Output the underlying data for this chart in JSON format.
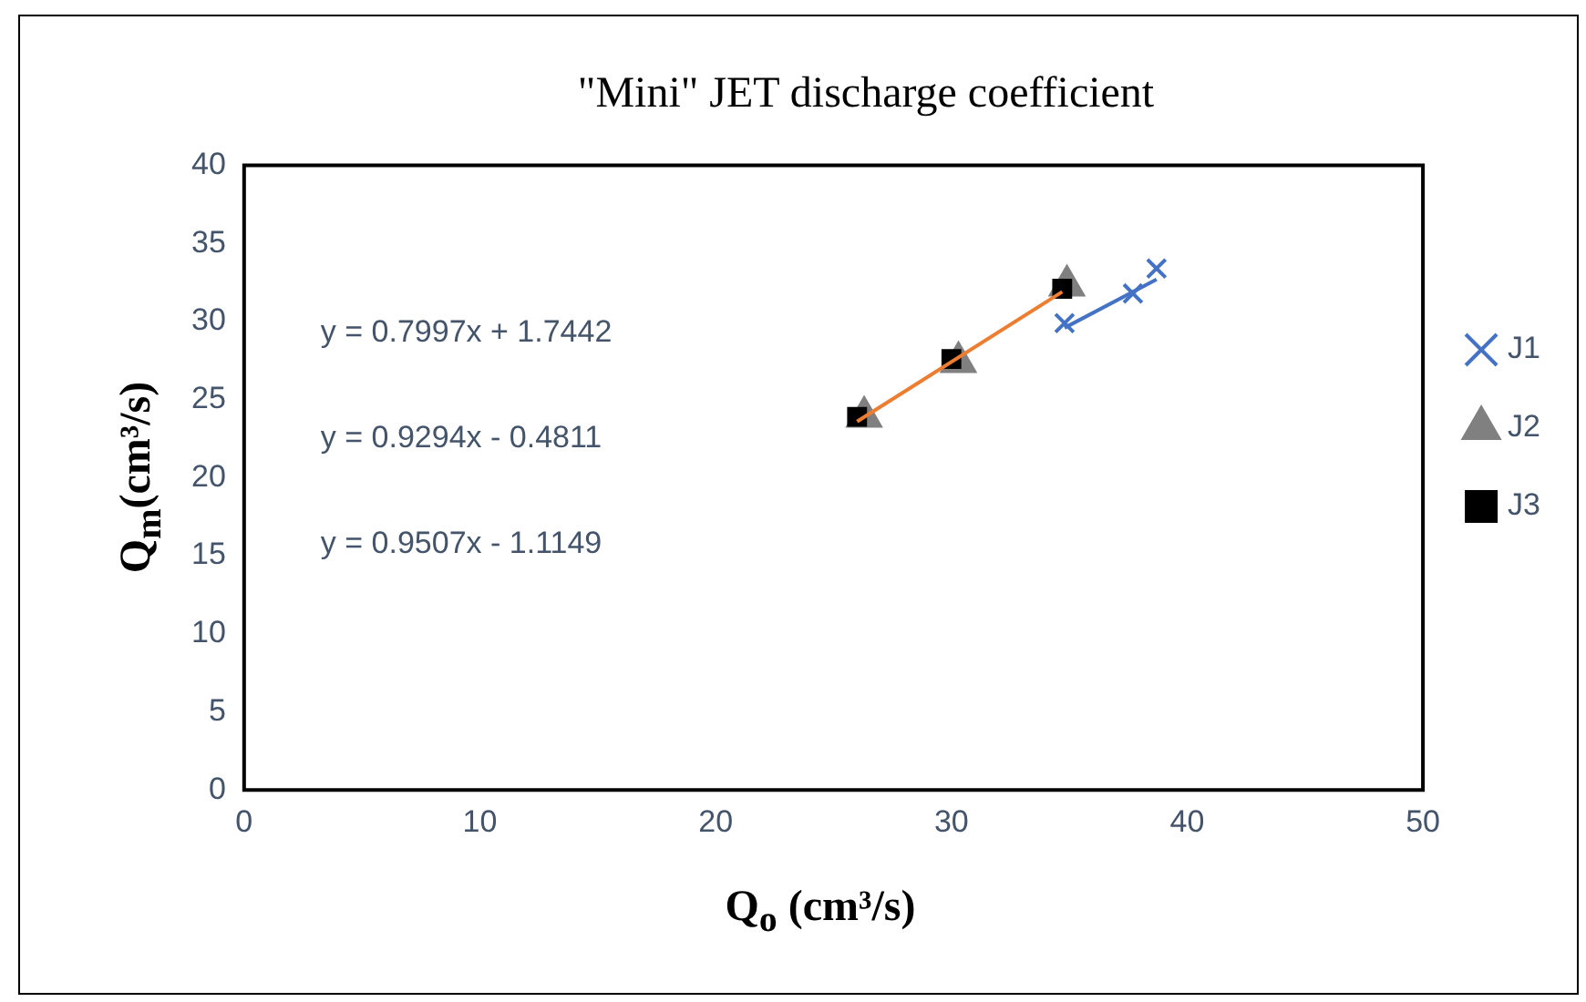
{
  "chart_data": {
    "type": "scatter",
    "title": "\"Mini\" JET discharge coefficient",
    "xlabel": "Q$_{o}$ (cm³/s)",
    "ylabel": "Q$_{m}$(cm³/s)",
    "xlim": [
      0,
      50
    ],
    "xticks": [
      0,
      10,
      20,
      30,
      40,
      50
    ],
    "ylim": [
      0,
      40
    ],
    "yticks": [
      0,
      5,
      10,
      15,
      20,
      25,
      30,
      35,
      40
    ],
    "grid": false,
    "legend": "right",
    "annotations": [
      "y = 0.7997x + 1.7442",
      "y = 0.9294x - 0.4811",
      "y = 0.9507x - 1.1149"
    ],
    "series": [
      {
        "name": "J1",
        "color": "#4472c4",
        "marker": "cross",
        "x": [
          34.8,
          37.7,
          38.7
        ],
        "values": [
          29.9,
          31.8,
          33.4
        ]
      },
      {
        "name": "J2",
        "color": "#808080",
        "marker": "triangle",
        "x": [
          26.3,
          30.3,
          34.9
        ],
        "values": [
          23.9,
          27.4,
          32.3
        ]
      },
      {
        "name": "J3",
        "color": "#000000",
        "marker": "square",
        "x": [
          26.0,
          30.0,
          34.7
        ],
        "values": [
          23.9,
          27.6,
          32.1
        ]
      },
      {
        "type": "line",
        "color": "#4472c4",
        "marker": "none",
        "x": [
          34.8,
          38.7
        ],
        "values": [
          29.6,
          32.7
        ]
      },
      {
        "type": "line",
        "color": "#ed7d31",
        "marker": "none",
        "x": [
          26.0,
          34.7
        ],
        "values": [
          23.6,
          31.9
        ]
      }
    ]
  }
}
